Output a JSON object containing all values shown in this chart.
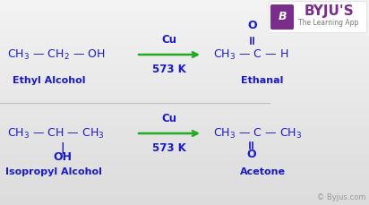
{
  "bg_color": "#ebebeb",
  "bg_top": "#f0f0f0",
  "bg_bottom": "#d8d8d8",
  "text_color": "#1a1acc",
  "arrow_color": "#22aa22",
  "byju_purple": "#7b2d8b",
  "byju_text_color": "#7b2d8b",
  "divider_color": "#c0c0c0",
  "copyright_color": "#999999",
  "label_color": "#1a1acc",
  "reaction1": {
    "catalyst": "Cu",
    "condition": "573 K",
    "reactant_label": "Ethyl Alcohol",
    "product_label": "Ethanal"
  },
  "reaction2": {
    "catalyst": "Cu",
    "condition": "573 K",
    "reactant_label": "Isopropyl Alcohol",
    "product_label": "Acetone"
  },
  "byju_text": "BYJU'S",
  "byju_sub": "The Learning App",
  "copyright": "© Byjus.com",
  "figsize": [
    4.12,
    2.29
  ],
  "dpi": 100
}
